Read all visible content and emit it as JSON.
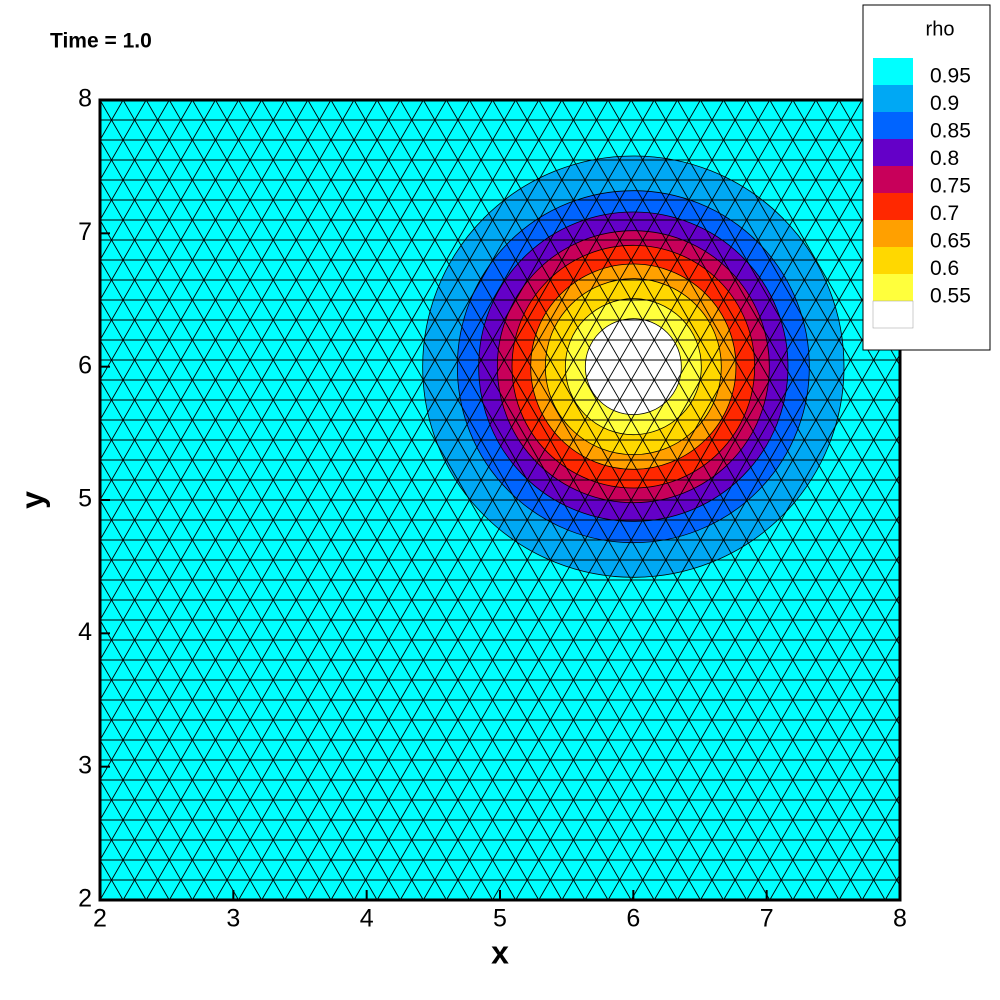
{
  "chart_data": {
    "type": "contour",
    "title": "Time = 1.0",
    "x_label": "x",
    "y_label": "y",
    "xlim": [
      2,
      8
    ],
    "ylim": [
      2,
      8
    ],
    "xticks": [
      2,
      3,
      4,
      5,
      6,
      7,
      8
    ],
    "yticks": [
      2,
      3,
      4,
      5,
      6,
      7,
      8
    ],
    "legend_title": "rho",
    "legend_position": "top-right",
    "levels": [
      0.95,
      0.9,
      0.85,
      0.8,
      0.75,
      0.7,
      0.65,
      0.6,
      0.55
    ],
    "colors": [
      "#00ffff",
      "#00a8f4",
      "#0064ff",
      "#6400c8",
      "#c8005a",
      "#ff2800",
      "#ffa000",
      "#ffd800",
      "#ffff3c",
      "#ffffff"
    ],
    "center": {
      "x": 6,
      "y": 6
    },
    "contours": [
      {
        "level": 0.95,
        "radius": 1.58
      },
      {
        "level": 0.9,
        "radius": 1.32
      },
      {
        "level": 0.85,
        "radius": 1.16
      },
      {
        "level": 0.8,
        "radius": 1.02
      },
      {
        "level": 0.75,
        "radius": 0.91
      },
      {
        "level": 0.7,
        "radius": 0.77
      },
      {
        "level": 0.65,
        "radius": 0.66
      },
      {
        "level": 0.6,
        "radius": 0.51
      },
      {
        "level": 0.55,
        "radius": 0.36
      }
    ]
  }
}
